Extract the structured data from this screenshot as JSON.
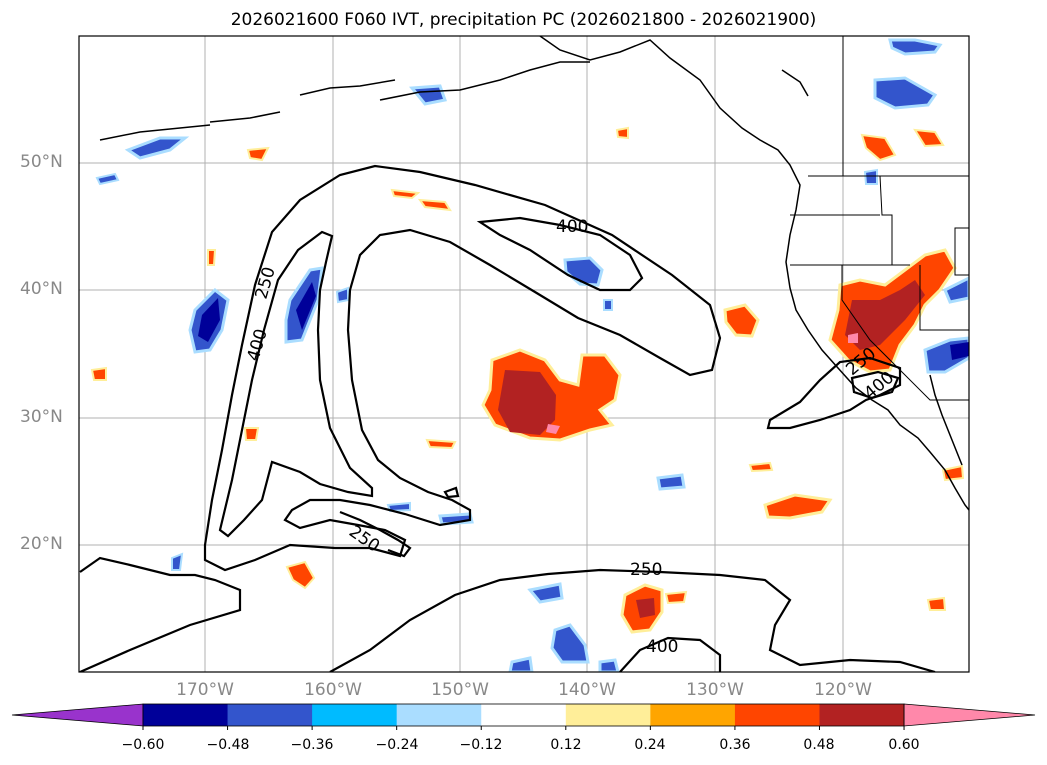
{
  "title": "2026021600 F060 IVT, precipitation PC (2026021800 - 2026021900)",
  "lat_labels": [
    "50°N",
    "40°N",
    "30°N",
    "20°N"
  ],
  "lon_labels": [
    "170°W",
    "160°W",
    "150°W",
    "140°W",
    "130°W",
    "120°W"
  ],
  "contour_labels": {
    "c250_west": "250",
    "c400_west": "400",
    "c400_north": "400",
    "c250_south": "250",
    "c400_south": "400",
    "c250_mid": "250",
    "c250_east": "250",
    "c400_east": "400"
  },
  "colorbar": {
    "ticks": [
      "−0.60",
      "−0.48",
      "−0.36",
      "−0.24",
      "−0.12",
      "0.12",
      "0.24",
      "0.36",
      "0.48",
      "0.60"
    ],
    "colors": [
      "#9933cc",
      "#000099",
      "#3355cc",
      "#00bbff",
      "#aaddff",
      "#ffffff",
      "#ffee99",
      "#ffa500",
      "#ff4500",
      "#b22222",
      "#ff88aa"
    ]
  },
  "palette": {
    "pos_low": "#ffee99",
    "pos_mid": "#ffa500",
    "pos_high": "#ff4500",
    "pos_vhigh": "#b22222",
    "pos_max": "#ff88aa",
    "neg_low": "#aaddff",
    "neg_mid": "#00bbff",
    "neg_high": "#3355cc",
    "neg_vhigh": "#000099"
  }
}
